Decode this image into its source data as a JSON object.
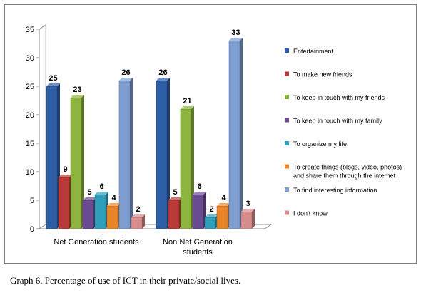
{
  "caption": "Graph 6. Percentage of use of ICT in their private/social lives.",
  "chart_data": {
    "type": "bar",
    "style": "3d-column",
    "categories": [
      [
        "Net Generation students"
      ],
      [
        "Non Net Generation",
        "students"
      ]
    ],
    "ylim": [
      0,
      35
    ],
    "yticks": [
      0,
      5,
      10,
      15,
      20,
      25,
      30,
      35
    ],
    "grid": false,
    "legend_position": "right",
    "series": [
      {
        "name": "Entertainment",
        "values": [
          25,
          26
        ],
        "color": "#2e5ea6"
      },
      {
        "name": "To make new friends",
        "values": [
          9,
          5
        ],
        "color": "#b93a36"
      },
      {
        "name": "To keep in touch with my friends",
        "values": [
          23,
          21
        ],
        "color": "#8db43f"
      },
      {
        "name": "To keep in touch with my family",
        "values": [
          5,
          6
        ],
        "color": "#6a4a91"
      },
      {
        "name": "To organize my life",
        "values": [
          6,
          2
        ],
        "color": "#2e9fba"
      },
      {
        "name": [
          "To create things (blogs, video, photos)",
          "and share them through the internet"
        ],
        "values": [
          4,
          4
        ],
        "color": "#e98427"
      },
      {
        "name": "To find interesting information",
        "values": [
          26,
          33
        ],
        "color": "#7e9ed2"
      },
      {
        "name": "I don't know",
        "values": [
          2,
          3
        ],
        "color": "#d98c8c"
      }
    ]
  }
}
